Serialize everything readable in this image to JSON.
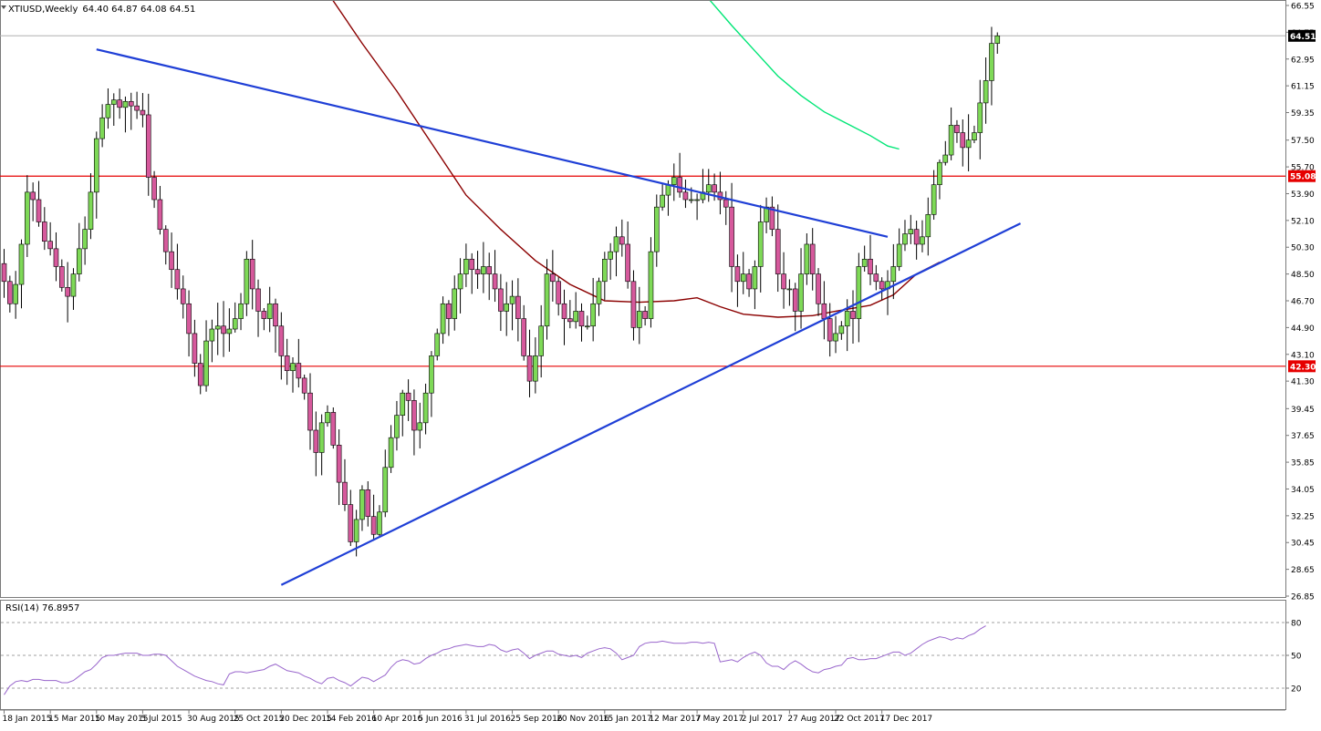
{
  "chart_data": {
    "type": "candlestick",
    "symbol_header": "XTIUSD,Weekly",
    "ohlc_header": "64.40 64.87 64.08 64.51",
    "price_axis": {
      "ticks": [
        "66.55",
        "64.75",
        "62.95",
        "61.15",
        "59.35",
        "57.50",
        "55.70",
        "53.90",
        "52.10",
        "50.30",
        "48.50",
        "46.70",
        "44.90",
        "43.10",
        "41.30",
        "39.45",
        "37.65",
        "35.85",
        "34.05",
        "32.25",
        "30.45",
        "28.65",
        "26.85"
      ],
      "range": [
        26.85,
        66.55
      ]
    },
    "current_price": {
      "label": "64.51",
      "value": 64.51
    },
    "resistance": {
      "label": "55.08",
      "value": 55.08,
      "color": "#e60000"
    },
    "support": {
      "label": "42.30",
      "value": 42.3,
      "color": "#e60000"
    },
    "time_axis": [
      "18 Jan 2015",
      "15 Mar 2015",
      "10 May 2015",
      "5 Jul 2015",
      "30 Aug 2015",
      "25 Oct 2015",
      "20 Dec 2015",
      "14 Feb 2016",
      "10 Apr 2016",
      "5 Jun 2016",
      "31 Jul 2016",
      "25 Sep 2016",
      "20 Nov 2016",
      "15 Jan 2017",
      "12 Mar 2017",
      "7 May 2017",
      "2 Jul 2017",
      "27 Aug 2017",
      "22 Oct 2017",
      "17 Dec 2017"
    ],
    "start_week": "18 Jan 2015",
    "closes": [
      48.0,
      46.5,
      47.8,
      50.5,
      54.0,
      53.5,
      52.0,
      50.7,
      50.2,
      49.0,
      47.6,
      47.0,
      48.5,
      50.2,
      51.5,
      54.0,
      57.6,
      59.0,
      59.9,
      60.2,
      59.7,
      60.1,
      59.8,
      59.5,
      59.2,
      55.0,
      53.5,
      51.5,
      50.0,
      48.8,
      47.5,
      46.5,
      44.5,
      42.5,
      41.0,
      44.0,
      44.8,
      45.0,
      44.5,
      44.8,
      45.5,
      46.5,
      49.5,
      47.5,
      46.0,
      45.5,
      46.5,
      45.0,
      43.0,
      42.0,
      42.5,
      41.5,
      40.5,
      38.0,
      36.5,
      38.5,
      39.2,
      37.0,
      34.5,
      33.0,
      30.5,
      32.0,
      34.0,
      32.2,
      31.0,
      32.5,
      35.5,
      37.5,
      39.0,
      40.5,
      40.0,
      38.0,
      38.5,
      40.5,
      43.0,
      44.5,
      46.5,
      45.5,
      47.5,
      48.5,
      49.5,
      48.8,
      48.5,
      49.0,
      48.5,
      47.5,
      46.0,
      46.5,
      47.0,
      45.5,
      43.0,
      41.3,
      43.0,
      45.0,
      48.5,
      48.0,
      46.5,
      45.5,
      45.3,
      46.0,
      45.0,
      45.0,
      46.5,
      48.0,
      49.5,
      50.0,
      51.0,
      50.5,
      48.0,
      44.9,
      46.0,
      45.5,
      50.0,
      53.0,
      53.8,
      54.5,
      55.0,
      54.0,
      53.5,
      53.5,
      53.5,
      54.0,
      54.5,
      54.0,
      53.5,
      53.0,
      49.0,
      48.0,
      48.5,
      47.5,
      49.0,
      52.0,
      53.0,
      51.5,
      48.5,
      47.5,
      47.5,
      46.0,
      48.5,
      50.5,
      48.5,
      46.5,
      45.5,
      44.0,
      44.5,
      45.0,
      46.0,
      45.5,
      49.0,
      49.5,
      48.5,
      48.0,
      47.5,
      48.0,
      49.0,
      50.5,
      51.2,
      51.5,
      50.5,
      51.0,
      52.5,
      54.5,
      56.0,
      56.5,
      58.5,
      58.0,
      57.0,
      57.5,
      58.0,
      60.0,
      61.5,
      64.0,
      64.51
    ],
    "lines": [
      {
        "kind": "downtrend",
        "color": "#1f3fd6",
        "from": {
          "week": 16,
          "price": 63.6
        },
        "to": {
          "week": 153,
          "price": 51.0
        }
      },
      {
        "kind": "uptrend",
        "color": "#1f3fd6",
        "from": {
          "week": 48,
          "price": 27.6
        },
        "to": {
          "week": 176,
          "price": 51.9
        }
      }
    ],
    "moving_averages": [
      {
        "color": "#8b0000",
        "points": [
          [
            55,
            68.0
          ],
          [
            62,
            64.0
          ],
          [
            68,
            60.8
          ],
          [
            74,
            57.3
          ],
          [
            80,
            53.8
          ],
          [
            86,
            51.5
          ],
          [
            92,
            49.4
          ],
          [
            98,
            47.8
          ],
          [
            104,
            46.7
          ],
          [
            110,
            46.6
          ],
          [
            116,
            46.7
          ],
          [
            120,
            46.9
          ],
          [
            124,
            46.3
          ],
          [
            128,
            45.8
          ],
          [
            134,
            45.6
          ],
          [
            140,
            45.7
          ],
          [
            144,
            46.0
          ],
          [
            150,
            46.4
          ],
          [
            154,
            47.1
          ],
          [
            158,
            48.5
          ],
          [
            162,
            49.3
          ]
        ]
      },
      {
        "color": "#00e676",
        "points": [
          [
            122,
            67.0
          ],
          [
            126,
            65.2
          ],
          [
            130,
            63.5
          ],
          [
            134,
            61.8
          ],
          [
            138,
            60.5
          ],
          [
            142,
            59.4
          ],
          [
            146,
            58.6
          ],
          [
            150,
            57.8
          ],
          [
            153,
            57.1
          ],
          [
            155,
            56.9
          ]
        ]
      }
    ],
    "rsi": {
      "label": "RSI(14) 76.8957",
      "levels": [
        80,
        50,
        20
      ],
      "ticks": [
        "80",
        "50",
        "20"
      ],
      "color": "#9966cc",
      "values": [
        14,
        22,
        26,
        27,
        26,
        28,
        28,
        27,
        27,
        27,
        25,
        25,
        27,
        31,
        35,
        37,
        42,
        48,
        50,
        50,
        51,
        52,
        52,
        52,
        50,
        50,
        51,
        51,
        50,
        45,
        40,
        37,
        34,
        31,
        29,
        27,
        26,
        24,
        23,
        33,
        35,
        35,
        34,
        35,
        36,
        37,
        40,
        42,
        39,
        36,
        35,
        34,
        31,
        29,
        26,
        24,
        29,
        30,
        27,
        25,
        22,
        26,
        30,
        29,
        26,
        29,
        32,
        39,
        44,
        46,
        45,
        42,
        43,
        47,
        50,
        52,
        55,
        56,
        58,
        59,
        60,
        59,
        58,
        58,
        60,
        59,
        55,
        53,
        55,
        56,
        52,
        47,
        50,
        52,
        54,
        54,
        51,
        50,
        49,
        50,
        48,
        52,
        54,
        56,
        57,
        56,
        52,
        46,
        48,
        50,
        58,
        61,
        62,
        62,
        63,
        62,
        61,
        61,
        61,
        62,
        62,
        61,
        62,
        61,
        44,
        45,
        46,
        44,
        48,
        51,
        53,
        50,
        43,
        40,
        40,
        37,
        42,
        45,
        42,
        38,
        35,
        34,
        37,
        38,
        40,
        41,
        47,
        48,
        46,
        46,
        47,
        47,
        49,
        51,
        53,
        53,
        50,
        52,
        56,
        60,
        63,
        65,
        67,
        66,
        64,
        66,
        65,
        68,
        70,
        74,
        77
      ]
    }
  }
}
